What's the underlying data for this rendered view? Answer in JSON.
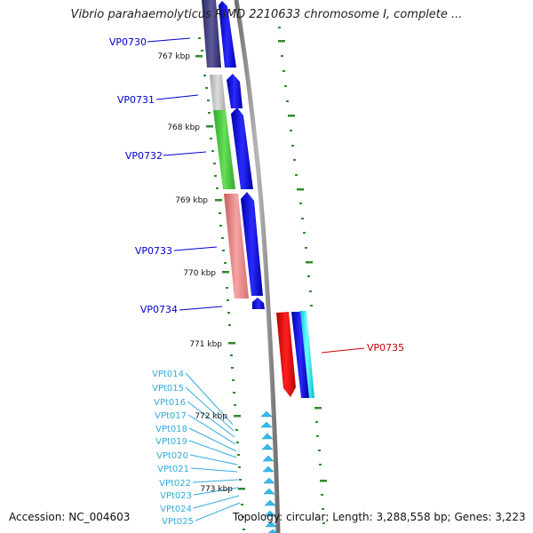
{
  "title": "Vibrio parahaemolyticus RIMD 2210633 chromosome I, complete ...",
  "footer": {
    "accession": "Accession: NC_004603",
    "summary": "Topology: circular; Length: 3,288,558 bp; Genes: 3,223"
  },
  "scale_labels": [
    "767 kbp",
    "768 kbp",
    "769 kbp",
    "770 kbp",
    "771 kbp",
    "772 kbp",
    "773 kbp"
  ],
  "colors": {
    "backbone": "#8a8a8a",
    "ticks": "#2e8b2e",
    "cds_forward": "#0000ee",
    "cds_reverse": "#ee0000",
    "trna": "#33bbee",
    "label_forward": "#0000cc",
    "label_reverse": "#cc0000",
    "label_trna": "#33aadd"
  },
  "genes": [
    {
      "name": "VP0730",
      "strand": "forward",
      "category_color": "#3c3a7a"
    },
    {
      "name": "VP0731",
      "strand": "forward",
      "category_color": "#bdbdbd"
    },
    {
      "name": "VP0732",
      "strand": "forward",
      "category_color": "#44cc33"
    },
    {
      "name": "VP0733",
      "strand": "forward",
      "category_color": "#ee8888"
    },
    {
      "name": "VP0734",
      "strand": "forward",
      "category_color": ""
    },
    {
      "name": "VP0735",
      "strand": "reverse",
      "category_color": "#00eeff"
    }
  ],
  "trnas": [
    "VPt014",
    "VPt015",
    "VPt016",
    "VPt017",
    "VPt018",
    "VPt019",
    "VPt020",
    "VPt021",
    "VPt022",
    "VPt023",
    "VPt024",
    "VPt025"
  ]
}
